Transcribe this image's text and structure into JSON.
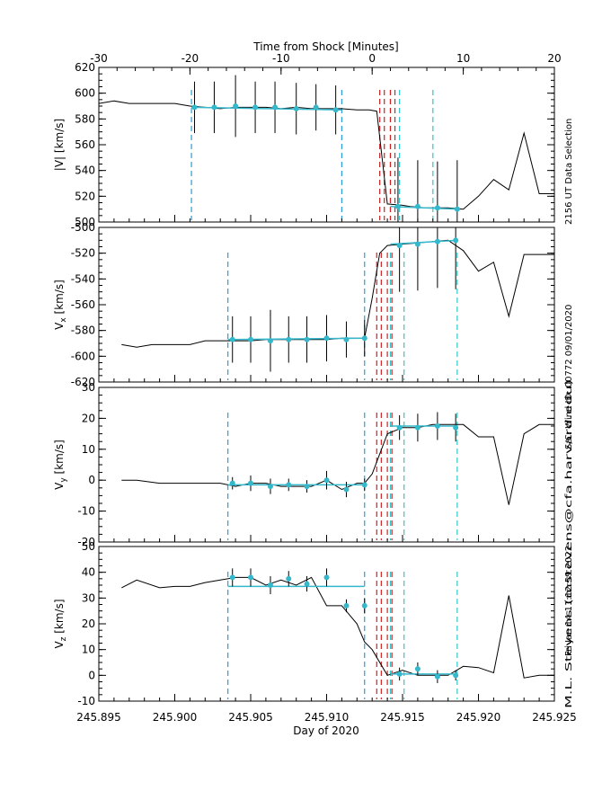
{
  "figure": {
    "top_axis_title": "Time from Shock [Minutes]",
    "bottom_axis_title": "Day of 2020",
    "side_labels": [
      "2156 UT Data Selection",
      "S/C: Wind  ID: 00772  09/01/2020",
      "M.L. Stevens (mstevens@cfa.harvard.edu)",
      "Fri Jan 14 11:12:59 2022"
    ],
    "colors": {
      "data": "#000000",
      "fit": "#33b8cc",
      "cyan_dash": "#33c8cc",
      "blue_dash": "#2a9fd6",
      "red_dash": "#cc2222"
    }
  },
  "chart_data": {
    "type": "line",
    "x_axis": {
      "label": "Day of 2020",
      "range": [
        245.895,
        245.925
      ],
      "ticks": [
        "245.895",
        "245.900",
        "245.905",
        "245.910",
        "245.915",
        "245.920",
        "245.925"
      ]
    },
    "top_axis": {
      "label": "Time from Shock [Minutes]",
      "range": [
        -30,
        20
      ],
      "ticks": [
        "-30",
        "-20",
        "-10",
        "0",
        "10",
        "20"
      ]
    },
    "vlines": {
      "blue": [
        245.9035,
        245.9125
      ],
      "cyan": [
        245.9142,
        245.9186
      ],
      "red": [
        245.9138,
        245.9142,
        245.9146,
        245.915
      ]
    },
    "panels": [
      {
        "ylabel": "|V| [km/s]",
        "ylim": [
          500,
          620
        ],
        "yticks": [
          "500",
          "520",
          "540",
          "560",
          "580",
          "600",
          "620"
        ],
        "vlines": {
          "blue": [
            245.9011,
            245.911
          ],
          "cyan": [
            245.9142,
            245.9148,
            245.917
          ],
          "red": [
            245.9135,
            245.9138,
            245.9142,
            245.9145
          ]
        },
        "line": {
          "x": [
            245.895,
            245.896,
            245.897,
            245.8985,
            245.9,
            245.901,
            245.902,
            245.903,
            245.904,
            245.905,
            245.906,
            245.907,
            245.908,
            245.909,
            245.91,
            245.911,
            245.912,
            245.9125,
            245.9128,
            245.9133,
            245.914,
            245.915,
            245.9155,
            245.9165,
            245.9172,
            245.918,
            245.919,
            245.92,
            245.921,
            245.922,
            245.923,
            245.924,
            245.925
          ],
          "y": [
            592,
            594,
            592,
            592,
            592,
            590,
            589,
            588,
            589,
            589,
            589,
            588,
            589,
            588,
            588,
            588,
            587,
            587,
            587,
            586,
            514,
            513,
            512,
            511,
            511,
            511,
            510,
            520,
            533,
            525,
            569,
            522,
            522
          ]
        },
        "points": {
          "x": [
            245.9013,
            245.9026,
            245.904,
            245.9053,
            245.9066,
            245.908,
            245.9093,
            245.9106,
            245.9147,
            245.916,
            245.9173,
            245.9186
          ],
          "y": [
            589,
            589,
            590,
            589,
            589,
            588,
            589,
            587,
            512,
            512,
            511,
            510
          ],
          "err": [
            20,
            20,
            24,
            20,
            20,
            20,
            18,
            19,
            38,
            36,
            36,
            38
          ]
        },
        "fits": [
          {
            "x": [
              245.9011,
              245.911
            ],
            "y": [
              589,
              587
            ]
          },
          {
            "x": [
              245.9142,
              245.9186
            ],
            "y": [
              512,
              510
            ]
          }
        ]
      },
      {
        "ylabel": "V_x [km/s]",
        "ylim": [
          -620,
          -500
        ],
        "yticks": [
          "-620",
          "-600",
          "-580",
          "-560",
          "-540",
          "-520",
          "-500"
        ],
        "vlines": {
          "blue": [
            245.9035,
            245.9125
          ],
          "cyan": [
            245.9142,
            245.9151,
            245.9186
          ],
          "red": [
            245.9133,
            245.9136,
            245.914,
            245.9143
          ]
        },
        "line": {
          "x": [
            245.8965,
            245.8975,
            245.8985,
            245.9,
            245.901,
            245.902,
            245.903,
            245.904,
            245.905,
            245.906,
            245.907,
            245.908,
            245.909,
            245.91,
            245.911,
            245.912,
            245.9125,
            245.913,
            245.9135,
            245.914,
            245.915,
            245.916,
            245.917,
            245.918,
            245.919,
            245.92,
            245.921,
            245.922,
            245.923,
            245.924,
            245.925
          ],
          "y": [
            -591,
            -593,
            -591,
            -591,
            -591,
            -588,
            -588,
            -588,
            -588,
            -587,
            -587,
            -587,
            -587,
            -587,
            -586,
            -586,
            -586,
            -555,
            -520,
            -514,
            -513,
            -512,
            -511,
            -510,
            -518,
            -534,
            -527,
            -569,
            -521,
            -521,
            -521
          ]
        },
        "points": {
          "x": [
            245.9038,
            245.905,
            245.9063,
            245.9075,
            245.9087,
            245.91,
            245.9113,
            245.9125,
            245.9148,
            245.916,
            245.9173,
            245.9185
          ],
          "y": [
            -587,
            -587,
            -588,
            -587,
            -587,
            -586,
            -587,
            -586,
            -514,
            -513,
            -511,
            -510
          ],
          "err": [
            18,
            18,
            24,
            18,
            18,
            18,
            14,
            14,
            36,
            36,
            36,
            38
          ]
        },
        "fits": [
          {
            "x": [
              245.9035,
              245.9125
            ],
            "y": [
              -587,
              -586
            ]
          },
          {
            "x": [
              245.9142,
              245.9186
            ],
            "y": [
              -513,
              -510
            ]
          }
        ]
      },
      {
        "ylabel": "V_y [km/s]",
        "ylim": [
          -20,
          30
        ],
        "yticks": [
          "-20",
          "-10",
          "0",
          "10",
          "20",
          "30"
        ],
        "vlines": {
          "blue": [
            245.9035,
            245.9125
          ],
          "cyan": [
            245.9142,
            245.9151,
            245.9186
          ],
          "red": [
            245.9133,
            245.9136,
            245.914,
            245.9143
          ]
        },
        "line": {
          "x": [
            245.8965,
            245.8975,
            245.899,
            245.9,
            245.901,
            245.902,
            245.903,
            245.904,
            245.905,
            245.906,
            245.907,
            245.908,
            245.909,
            245.91,
            245.911,
            245.912,
            245.9125,
            245.913,
            245.914,
            245.915,
            245.916,
            245.917,
            245.918,
            245.919,
            245.92,
            245.921,
            245.922,
            245.923,
            245.924,
            245.925
          ],
          "y": [
            0,
            0,
            -1,
            -1,
            -1,
            -1,
            -1,
            -2,
            -1,
            -1,
            -2,
            -2,
            -2,
            0,
            -3,
            -1,
            -1,
            2,
            15,
            17,
            17,
            18,
            18,
            18,
            14,
            14,
            -8,
            15,
            18,
            18
          ]
        },
        "points": {
          "x": [
            245.9038,
            245.905,
            245.9063,
            245.9075,
            245.9087,
            245.91,
            245.9113,
            245.9125,
            245.9148,
            245.916,
            245.9173,
            245.9185
          ],
          "y": [
            -1,
            -1,
            -2,
            -1.5,
            -2,
            0,
            -3,
            -1.5,
            17,
            17,
            17.5,
            17
          ],
          "err": [
            2,
            2.5,
            2.5,
            2,
            2,
            3,
            2.5,
            2,
            4,
            4.5,
            4.5,
            4.5
          ]
        },
        "fits": [
          {
            "x": [
              245.9035,
              245.9125
            ],
            "y": [
              -1.5,
              -1.5
            ]
          },
          {
            "x": [
              245.9142,
              245.9186
            ],
            "y": [
              17.5,
              17.5
            ]
          }
        ]
      },
      {
        "ylabel": "V_z [km/s]",
        "ylim": [
          -10,
          50
        ],
        "yticks": [
          "-10",
          "0",
          "10",
          "20",
          "30",
          "40",
          "50"
        ],
        "vlines": {
          "blue": [
            245.9035,
            245.9125
          ],
          "cyan": [
            245.9142,
            245.9151,
            245.9186
          ],
          "red": [
            245.9133,
            245.9136,
            245.914,
            245.9143
          ]
        },
        "line": {
          "x": [
            245.8965,
            245.8975,
            245.899,
            245.9,
            245.901,
            245.902,
            245.903,
            245.904,
            245.905,
            245.906,
            245.907,
            245.908,
            245.909,
            245.91,
            245.911,
            245.912,
            245.9125,
            245.913,
            245.914,
            245.915,
            245.916,
            245.917,
            245.918,
            245.919,
            245.92,
            245.921,
            245.922,
            245.923,
            245.924,
            245.925
          ],
          "y": [
            34,
            37,
            34,
            34.5,
            34.5,
            36,
            37,
            38,
            38,
            35,
            37,
            35,
            38,
            27,
            27,
            20,
            13,
            10,
            0,
            2,
            0,
            0,
            0,
            3.5,
            3,
            1,
            31,
            -1,
            0,
            0
          ]
        },
        "points": {
          "x": [
            245.9038,
            245.905,
            245.9063,
            245.9075,
            245.9087,
            245.91,
            245.9113,
            245.9125,
            245.9148,
            245.916,
            245.9173,
            245.9185
          ],
          "y": [
            38,
            38,
            35,
            37.5,
            35.5,
            38,
            27,
            27,
            0.5,
            2.5,
            -0.5,
            0
          ],
          "err": [
            3.5,
            3.5,
            3.5,
            3,
            3,
            3.5,
            2.5,
            3,
            2.5,
            2.5,
            2.5,
            2
          ]
        },
        "fits": [
          {
            "x": [
              245.9035,
              245.9125
            ],
            "y": [
              34.5,
              34.5
            ]
          },
          {
            "x": [
              245.9142,
              245.9186
            ],
            "y": [
              0.5,
              0.5
            ]
          }
        ]
      }
    ]
  }
}
